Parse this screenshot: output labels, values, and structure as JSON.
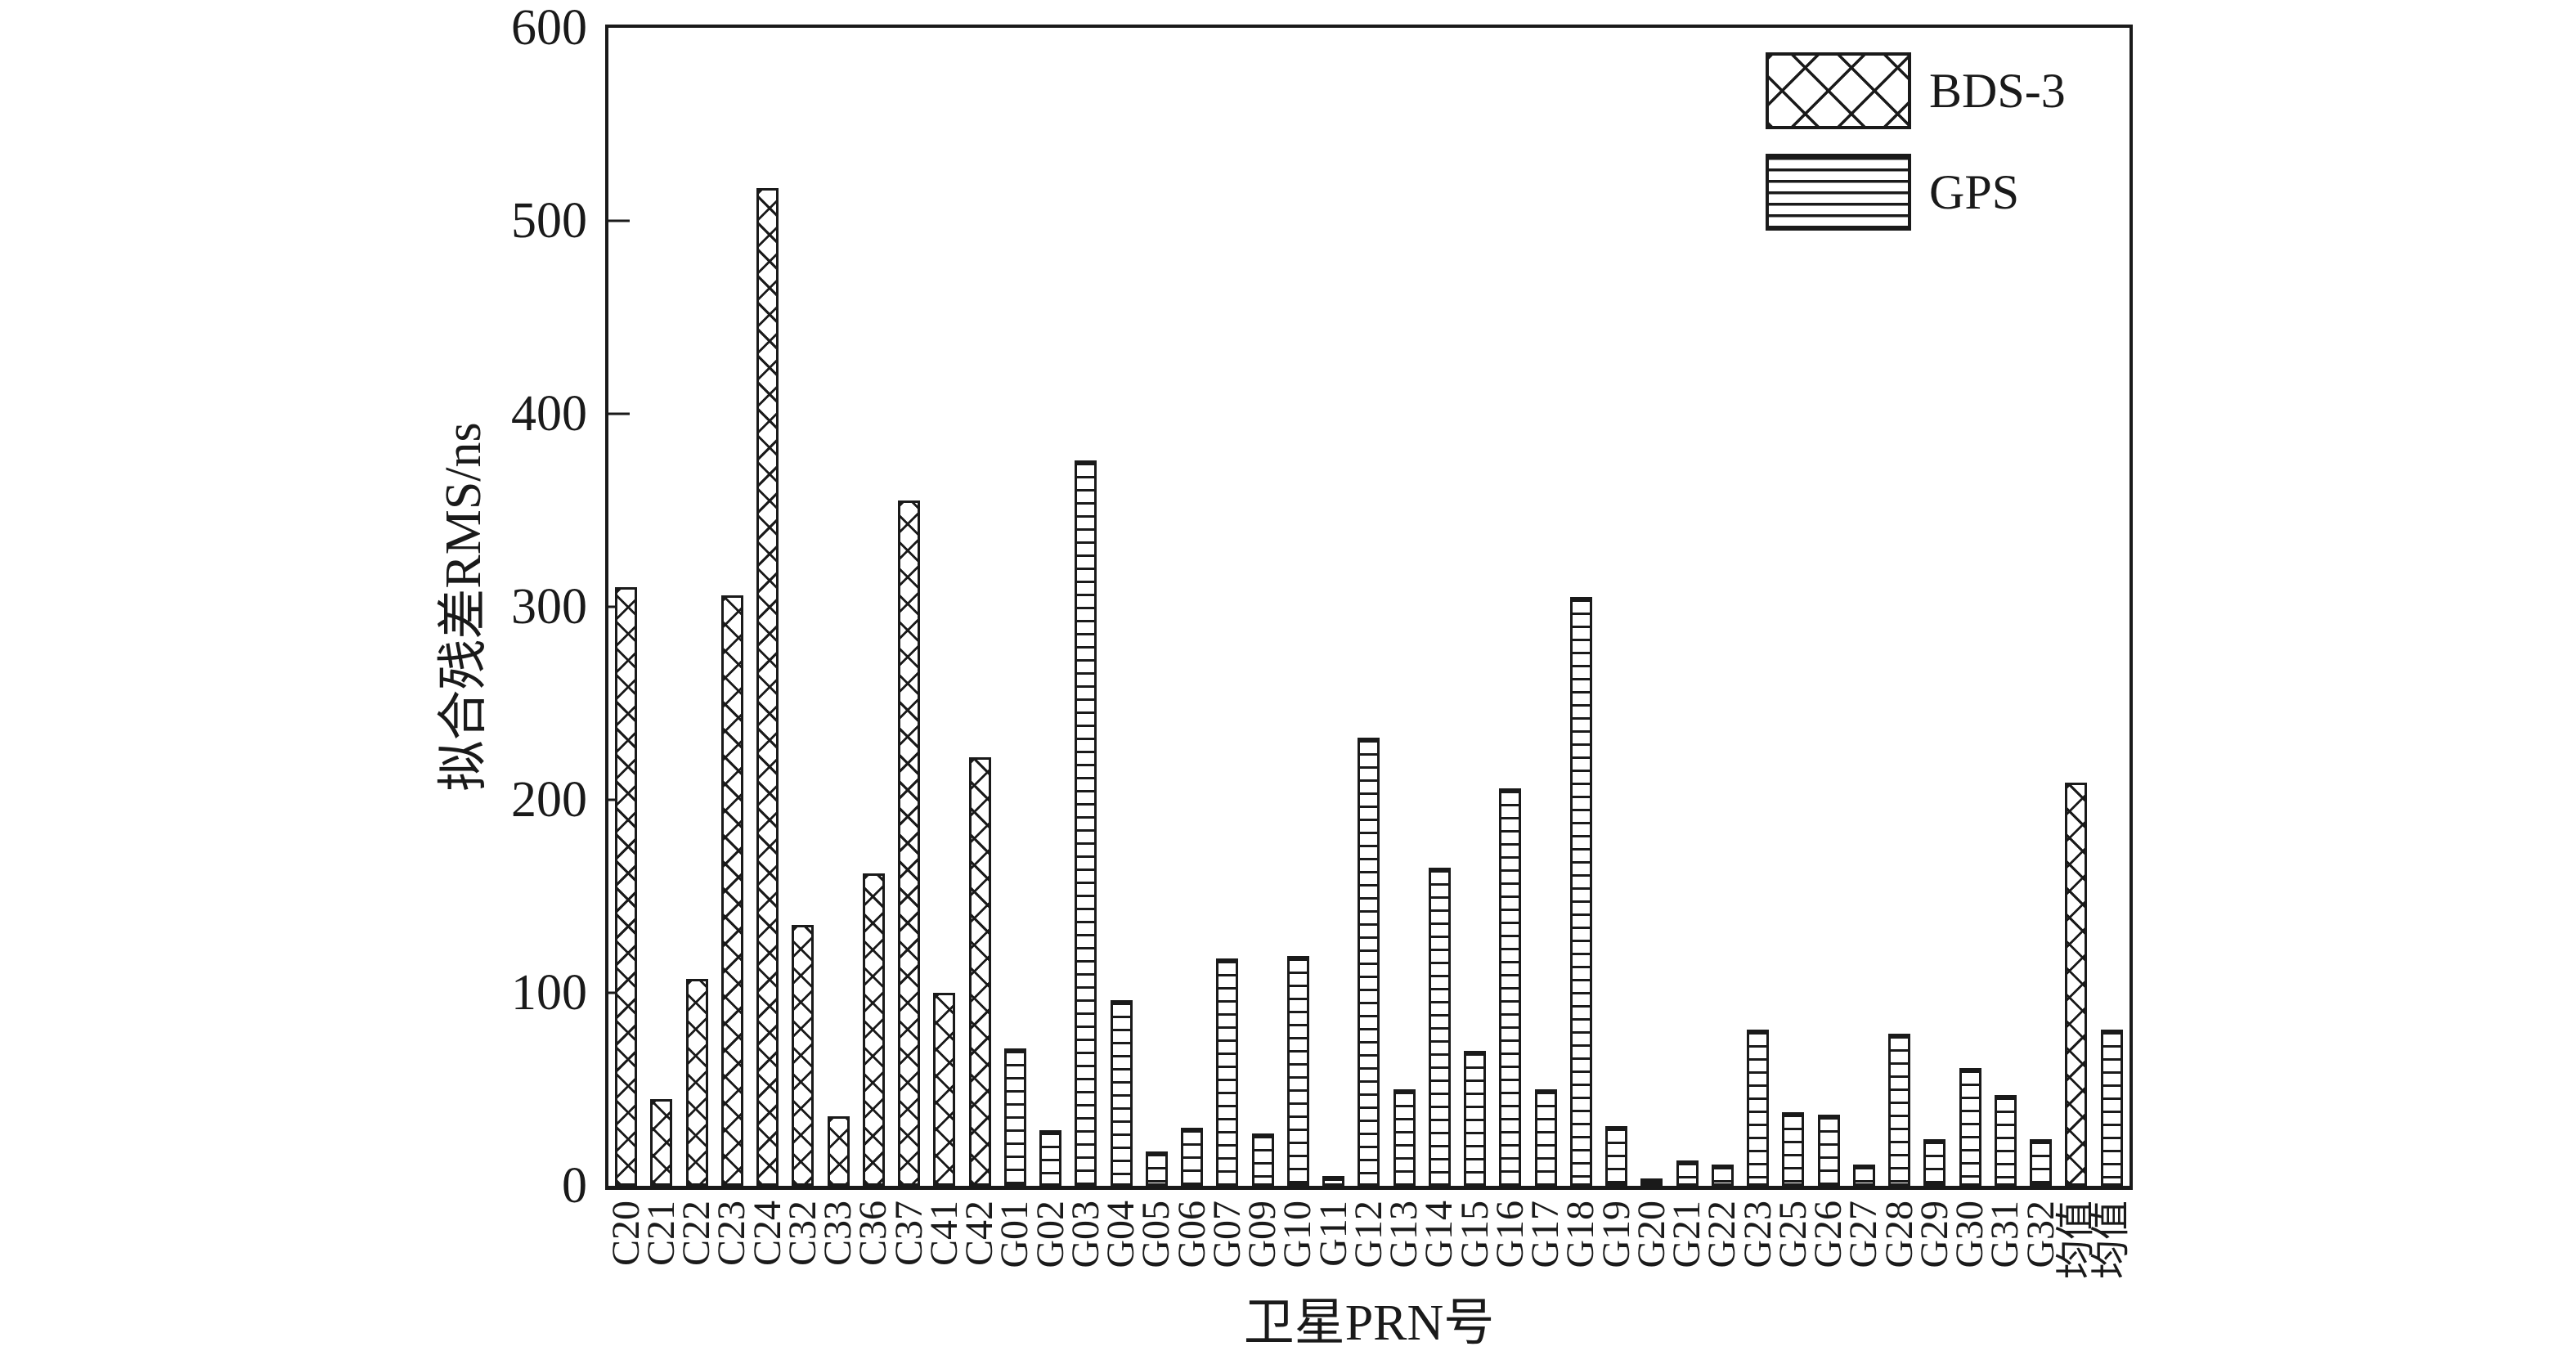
{
  "chart_data": {
    "type": "bar",
    "title": "",
    "xlabel": "卫星PRN号",
    "ylabel": "拟合残差RMS/ns",
    "ylim": [
      0,
      600
    ],
    "yticks": [
      0,
      100,
      200,
      300,
      400,
      500,
      600
    ],
    "grid": false,
    "legend_position": "upper right inside",
    "legend": [
      {
        "label": "BDS-3",
        "hatch": "diagonal-crosshatch"
      },
      {
        "label": "GPS",
        "hatch": "horizontal-lines"
      }
    ],
    "bars": [
      {
        "label": "C20",
        "value": 310,
        "series": "BDS-3"
      },
      {
        "label": "C21",
        "value": 45,
        "series": "BDS-3"
      },
      {
        "label": "C22",
        "value": 107,
        "series": "BDS-3"
      },
      {
        "label": "C23",
        "value": 306,
        "series": "BDS-3"
      },
      {
        "label": "C24",
        "value": 517,
        "series": "BDS-3"
      },
      {
        "label": "C32",
        "value": 135,
        "series": "BDS-3"
      },
      {
        "label": "C33",
        "value": 36,
        "series": "BDS-3"
      },
      {
        "label": "C36",
        "value": 162,
        "series": "BDS-3"
      },
      {
        "label": "C37",
        "value": 355,
        "series": "BDS-3"
      },
      {
        "label": "C41",
        "value": 100,
        "series": "BDS-3"
      },
      {
        "label": "C42",
        "value": 222,
        "series": "BDS-3"
      },
      {
        "label": "G01",
        "value": 71,
        "series": "GPS"
      },
      {
        "label": "G02",
        "value": 29,
        "series": "GPS"
      },
      {
        "label": "G03",
        "value": 376,
        "series": "GPS"
      },
      {
        "label": "G04",
        "value": 96,
        "series": "GPS"
      },
      {
        "label": "G05",
        "value": 18,
        "series": "GPS"
      },
      {
        "label": "G06",
        "value": 30,
        "series": "GPS"
      },
      {
        "label": "G07",
        "value": 118,
        "series": "GPS"
      },
      {
        "label": "G09",
        "value": 27,
        "series": "GPS"
      },
      {
        "label": "G10",
        "value": 119,
        "series": "GPS"
      },
      {
        "label": "G11",
        "value": 5,
        "series": "GPS"
      },
      {
        "label": "G12",
        "value": 232,
        "series": "GPS"
      },
      {
        "label": "G13",
        "value": 50,
        "series": "GPS"
      },
      {
        "label": "G14",
        "value": 165,
        "series": "GPS"
      },
      {
        "label": "G15",
        "value": 70,
        "series": "GPS"
      },
      {
        "label": "G16",
        "value": 206,
        "series": "GPS"
      },
      {
        "label": "G17",
        "value": 50,
        "series": "GPS"
      },
      {
        "label": "G18",
        "value": 305,
        "series": "GPS"
      },
      {
        "label": "G19",
        "value": 31,
        "series": "GPS"
      },
      {
        "label": "G20",
        "value": 4,
        "series": "GPS"
      },
      {
        "label": "G21",
        "value": 13,
        "series": "GPS"
      },
      {
        "label": "G22",
        "value": 11,
        "series": "GPS"
      },
      {
        "label": "G23",
        "value": 81,
        "series": "GPS"
      },
      {
        "label": "G25",
        "value": 38,
        "series": "GPS"
      },
      {
        "label": "G26",
        "value": 37,
        "series": "GPS"
      },
      {
        "label": "G27",
        "value": 11,
        "series": "GPS"
      },
      {
        "label": "G28",
        "value": 79,
        "series": "GPS"
      },
      {
        "label": "G29",
        "value": 24,
        "series": "GPS"
      },
      {
        "label": "G30",
        "value": 61,
        "series": "GPS"
      },
      {
        "label": "G31",
        "value": 47,
        "series": "GPS"
      },
      {
        "label": "G32",
        "value": 24,
        "series": "GPS"
      },
      {
        "label": "均值",
        "value": 209,
        "series": "BDS-3"
      },
      {
        "label": "均值",
        "value": 81,
        "series": "GPS"
      }
    ]
  }
}
